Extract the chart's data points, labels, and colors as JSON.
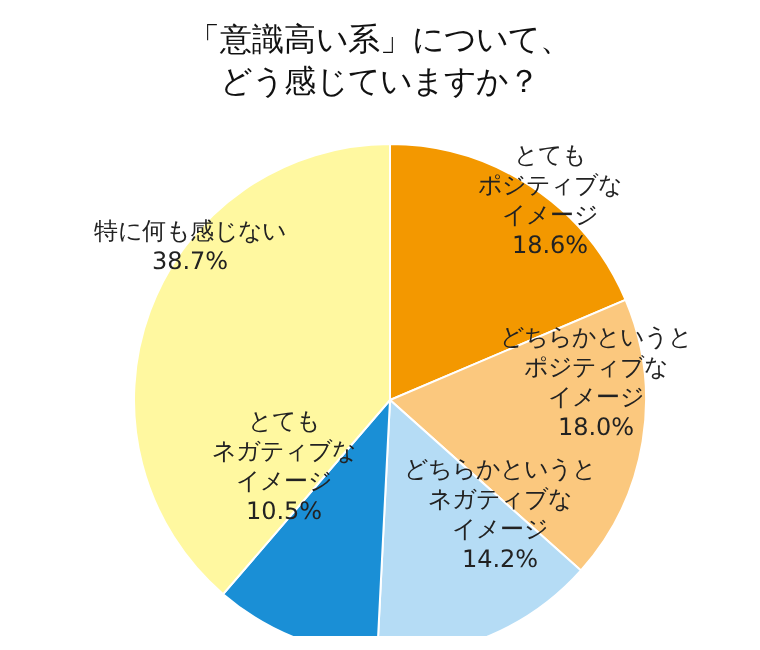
{
  "chart_data": {
    "type": "pie",
    "title": "「意識高い系」について、どう感じていますか？",
    "categories": [
      "とてもポジティブなイメージ",
      "どちらかというとポジティブなイメージ",
      "どちらかというとネガティブなイメージ",
      "とてもネガティブなイメージ",
      "特に何も感じない"
    ],
    "values": [
      18.6,
      18.0,
      14.2,
      10.5,
      38.7
    ],
    "value_labels": [
      "18.6%",
      "18.0%",
      "14.2%",
      "10.5%",
      "38.7%"
    ],
    "colors": [
      "#f39800",
      "#fbc87e",
      "#b5dcf5",
      "#1a8fd6",
      "#fff8a0"
    ],
    "legend": false
  }
}
